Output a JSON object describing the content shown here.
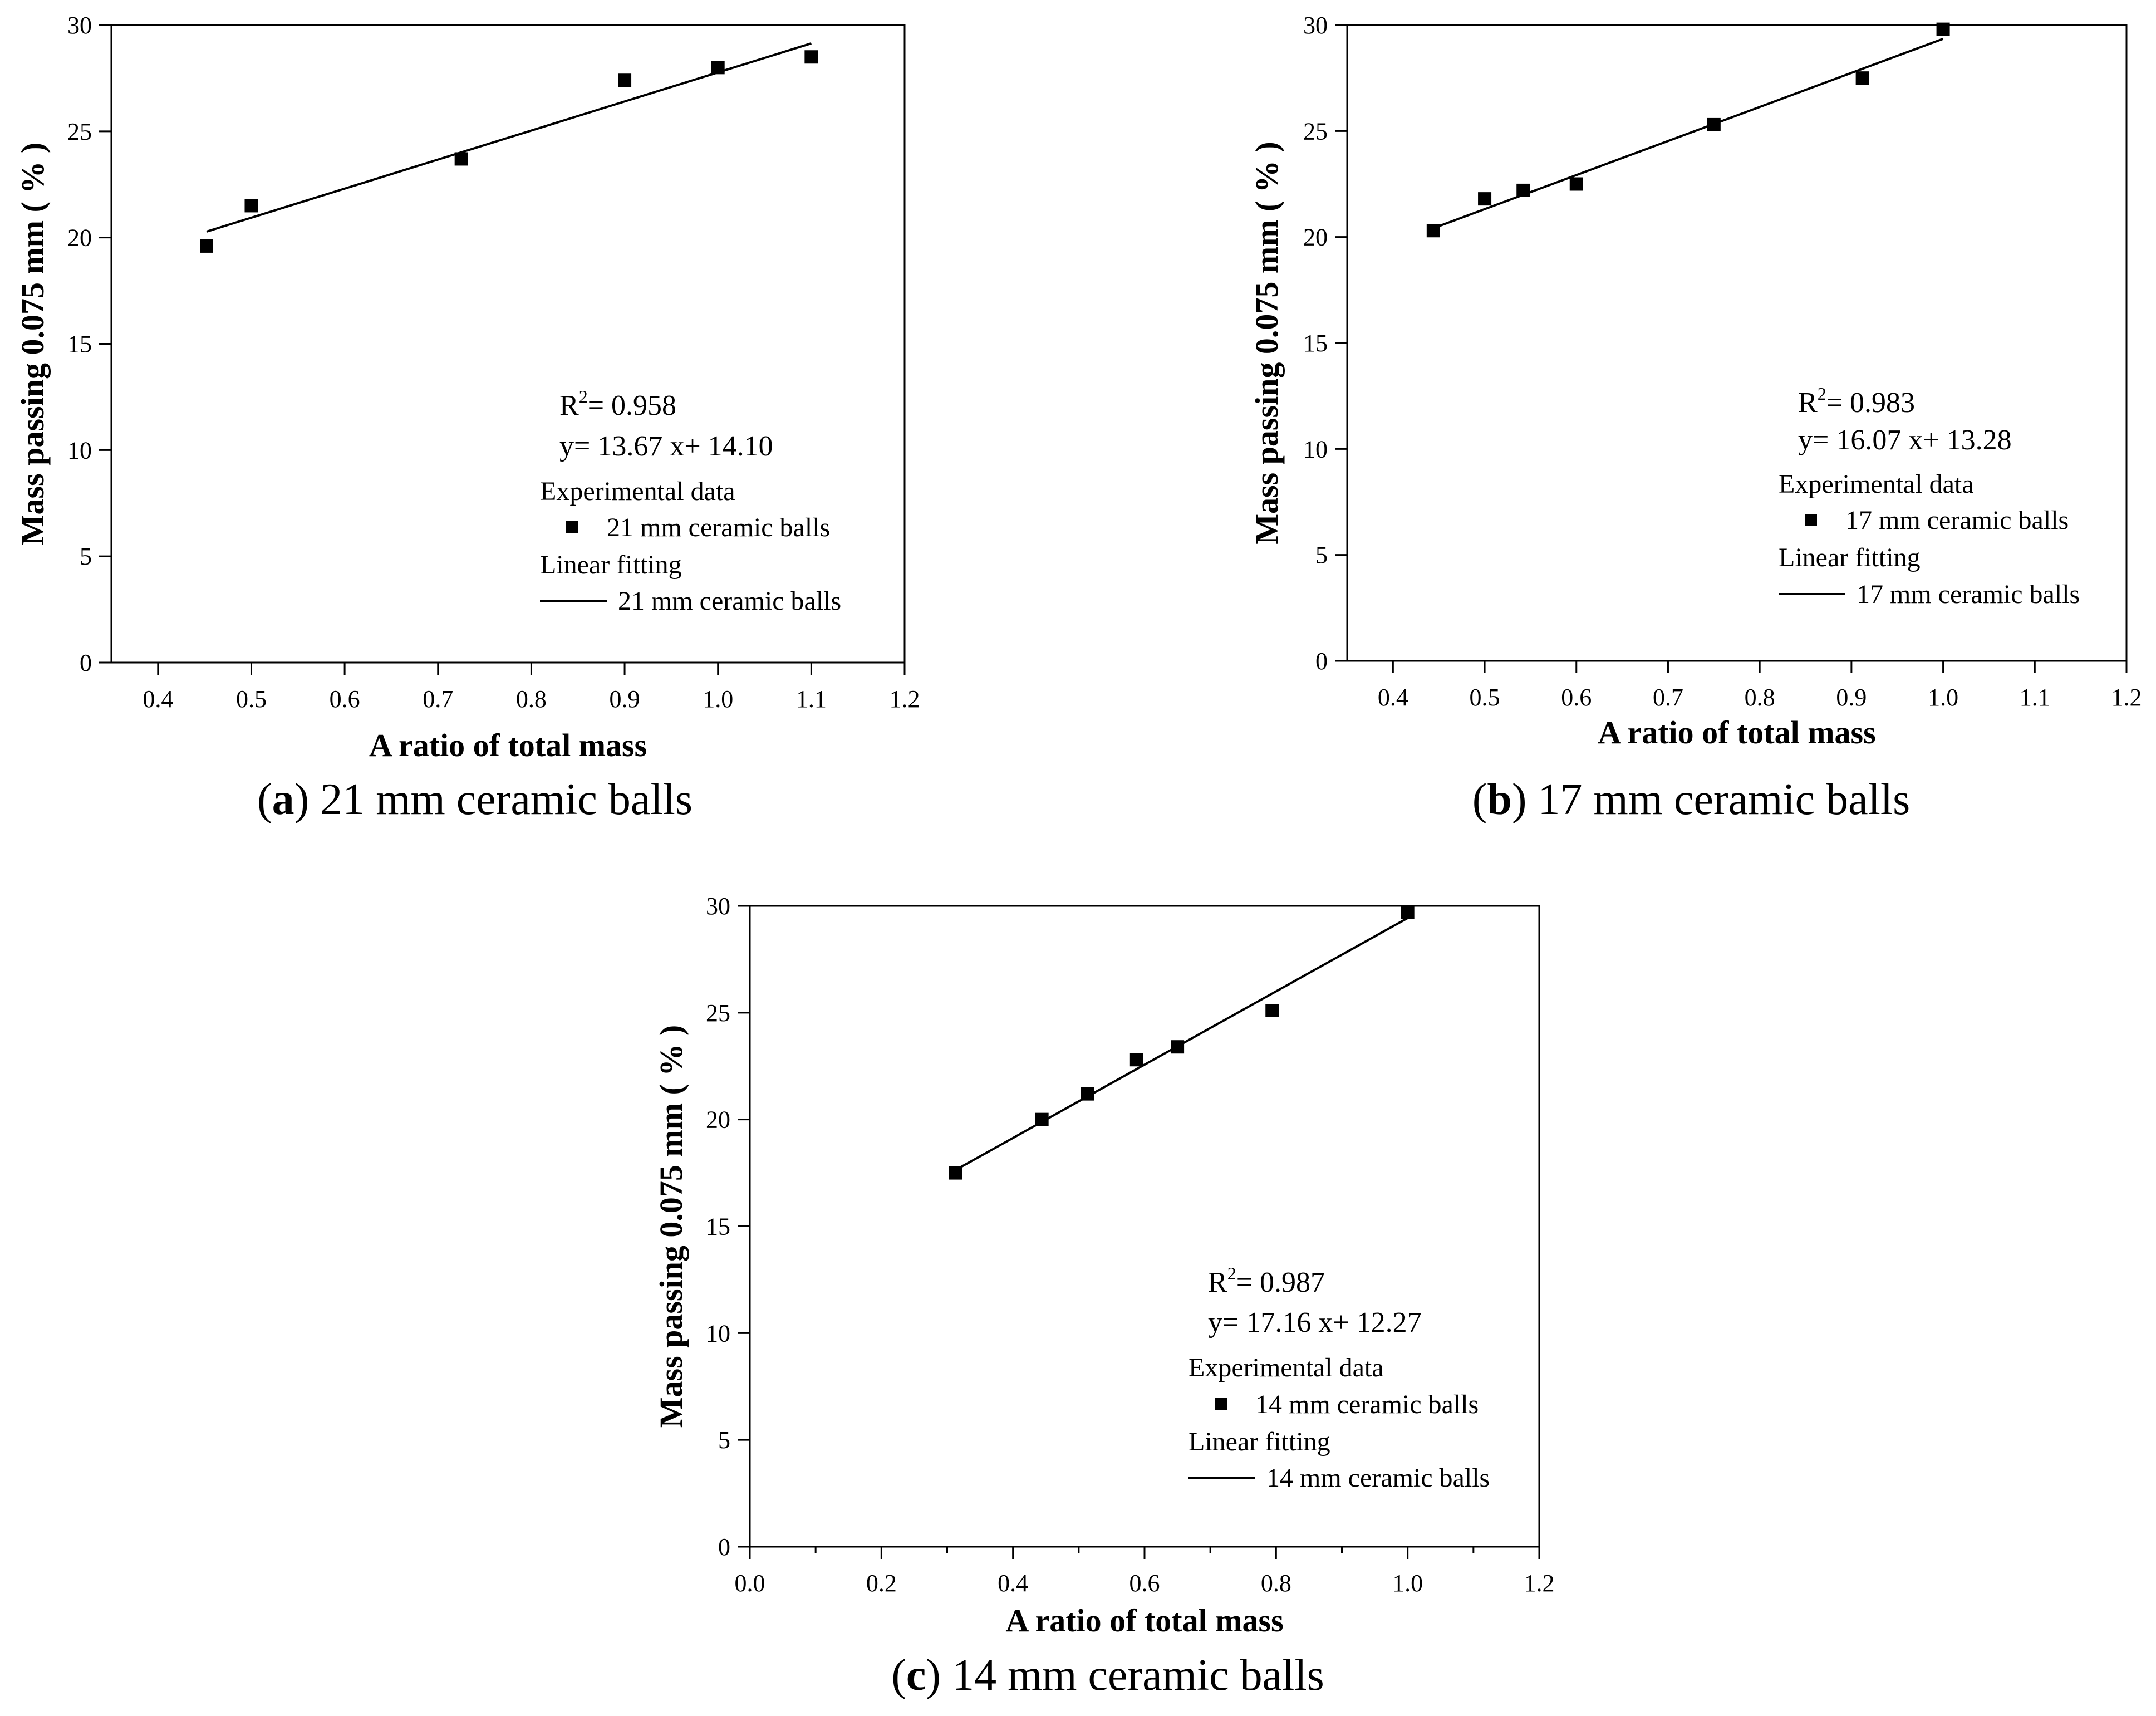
{
  "charts": [
    {
      "type": "scatter",
      "caption": {
        "letter": "a",
        "text": "21 mm ceramic balls"
      },
      "xlabel": "A ratio  of total mass",
      "ylabel": "Mass passing 0.075 mm ( % )",
      "xlim": [
        0.35,
        1.2
      ],
      "ylim": [
        0,
        30
      ],
      "xticks": [
        0.4,
        0.5,
        0.6,
        0.7,
        0.8,
        0.9,
        1.0,
        1.1,
        1.2
      ],
      "xtick_labels": [
        "0.4",
        "0.5",
        "0.6",
        "0.7",
        "0.8",
        "0.9",
        "1.0",
        "1.1",
        "1.2"
      ],
      "yticks": [
        0,
        5,
        10,
        15,
        20,
        25,
        30
      ],
      "ytick_labels": [
        "0",
        "5",
        "10",
        "15",
        "20",
        "25",
        "30"
      ],
      "series": [
        {
          "name": "21 mm ceramic balls",
          "x": [
            0.452,
            0.5,
            0.725,
            0.9,
            1.0,
            1.1
          ],
          "y": [
            19.6,
            21.5,
            23.7,
            27.4,
            28.0,
            28.5
          ]
        }
      ],
      "fit": {
        "name": "21 mm ceramic balls",
        "slope": 13.67,
        "intercept": 14.1,
        "x_range": [
          0.452,
          1.1
        ]
      },
      "r2_label": "R",
      "r2_value": "= 0.958",
      "equation": "y= 13.67 x+ 14.10",
      "legend": {
        "exp_title": "Experimental data",
        "exp_label": "21 mm ceramic balls",
        "fit_title": "Linear fitting",
        "fit_label": "21 mm ceramic balls"
      }
    },
    {
      "type": "scatter",
      "caption": {
        "letter": "b",
        "text": "17 mm ceramic balls"
      },
      "xlabel": "A ratio  of total mass",
      "ylabel": "Mass passing 0.075 mm ( % )",
      "xlim": [
        0.35,
        1.2
      ],
      "ylim": [
        0,
        30
      ],
      "xticks": [
        0.4,
        0.5,
        0.6,
        0.7,
        0.8,
        0.9,
        1.0,
        1.1,
        1.2
      ],
      "xtick_labels": [
        "0.4",
        "0.5",
        "0.6",
        "0.7",
        "0.8",
        "0.9",
        "1.0",
        "1.1",
        "1.2"
      ],
      "yticks": [
        0,
        5,
        10,
        15,
        20,
        25,
        30
      ],
      "ytick_labels": [
        "0",
        "5",
        "10",
        "15",
        "20",
        "25",
        "30"
      ],
      "series": [
        {
          "name": "17 mm ceramic balls",
          "x": [
            0.444,
            0.5,
            0.542,
            0.6,
            0.75,
            0.912,
            1.0
          ],
          "y": [
            20.3,
            21.8,
            22.2,
            22.5,
            25.3,
            27.5,
            29.8
          ]
        }
      ],
      "fit": {
        "name": "17 mm ceramic balls",
        "slope": 16.07,
        "intercept": 13.28,
        "x_range": [
          0.444,
          1.0
        ]
      },
      "r2_label": "R",
      "r2_value": "= 0.983",
      "equation": "y= 16.07 x+ 13.28",
      "legend": {
        "exp_title": "Experimental data",
        "exp_label": "17 mm ceramic balls",
        "fit_title": "Linear fitting",
        "fit_label": "17 mm ceramic balls"
      }
    },
    {
      "type": "scatter",
      "caption": {
        "letter": "c",
        "text": "14 mm ceramic balls"
      },
      "xlabel": "A ratio  of total mass",
      "ylabel": "Mass passing 0.075 mm ( % )",
      "xlim": [
        0.0,
        1.2
      ],
      "ylim": [
        0,
        30
      ],
      "xticks": [
        0.0,
        0.2,
        0.4,
        0.6,
        0.8,
        1.0,
        1.2
      ],
      "xtick_labels": [
        "0.0",
        "0.2",
        "0.4",
        "0.6",
        "0.8",
        "1.0",
        "1.2"
      ],
      "xminor": [
        0.1,
        0.3,
        0.5,
        0.7,
        0.9,
        1.1
      ],
      "yticks": [
        0,
        5,
        10,
        15,
        20,
        25,
        30
      ],
      "ytick_labels": [
        "0",
        "5",
        "10",
        "15",
        "20",
        "25",
        "30"
      ],
      "series": [
        {
          "name": "14 mm ceramic balls",
          "x": [
            0.313,
            0.444,
            0.513,
            0.588,
            0.65,
            0.794,
            1.0
          ],
          "y": [
            17.5,
            20.0,
            21.2,
            22.8,
            23.4,
            25.1,
            29.7
          ]
        }
      ],
      "fit": {
        "name": "14 mm ceramic balls",
        "slope": 17.16,
        "intercept": 12.27,
        "x_range": [
          0.313,
          1.0
        ]
      },
      "r2_label": "R",
      "r2_value": "= 0.987",
      "equation": "y= 17.16 x+ 12.27",
      "legend": {
        "exp_title": "Experimental data",
        "exp_label": "14 mm ceramic balls",
        "fit_title": "Linear fitting",
        "fit_label": "14 mm ceramic balls"
      }
    }
  ]
}
